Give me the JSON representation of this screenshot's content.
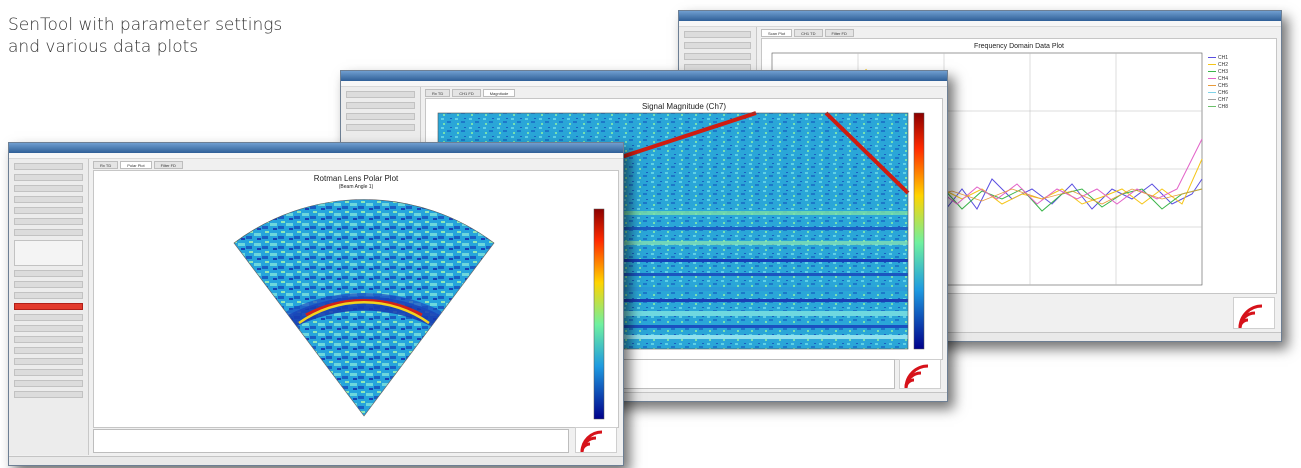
{
  "caption": {
    "line1": "SenTool with parameter settings",
    "line2": "and various data plots"
  },
  "windows": {
    "freq": {
      "title": "Frequency Domain Data Plot",
      "tabs": [
        "Scan Plot",
        "CH1 TD",
        "Filter FD"
      ],
      "legend": [
        "CH1",
        "CH2",
        "CH3",
        "CH4",
        "CH5",
        "CH6",
        "CH7",
        "CH8"
      ]
    },
    "signal": {
      "title": "Signal Magnitude (Ch7)",
      "tabs": [
        "Rx TD",
        "CH1 FD",
        "Magnitude"
      ]
    },
    "polar": {
      "title": "Rotman Lens Polar Plot",
      "subtitle": "(Beam Angle 1)",
      "tabs": [
        "Rx TD",
        "Polar Plot",
        "Filter FD"
      ]
    }
  },
  "colors": {
    "titlebar": "#3a6ea8",
    "status_red": "#e23a2c",
    "logo": "#d6121a"
  },
  "icons": [
    "sensor-logo-icon"
  ]
}
